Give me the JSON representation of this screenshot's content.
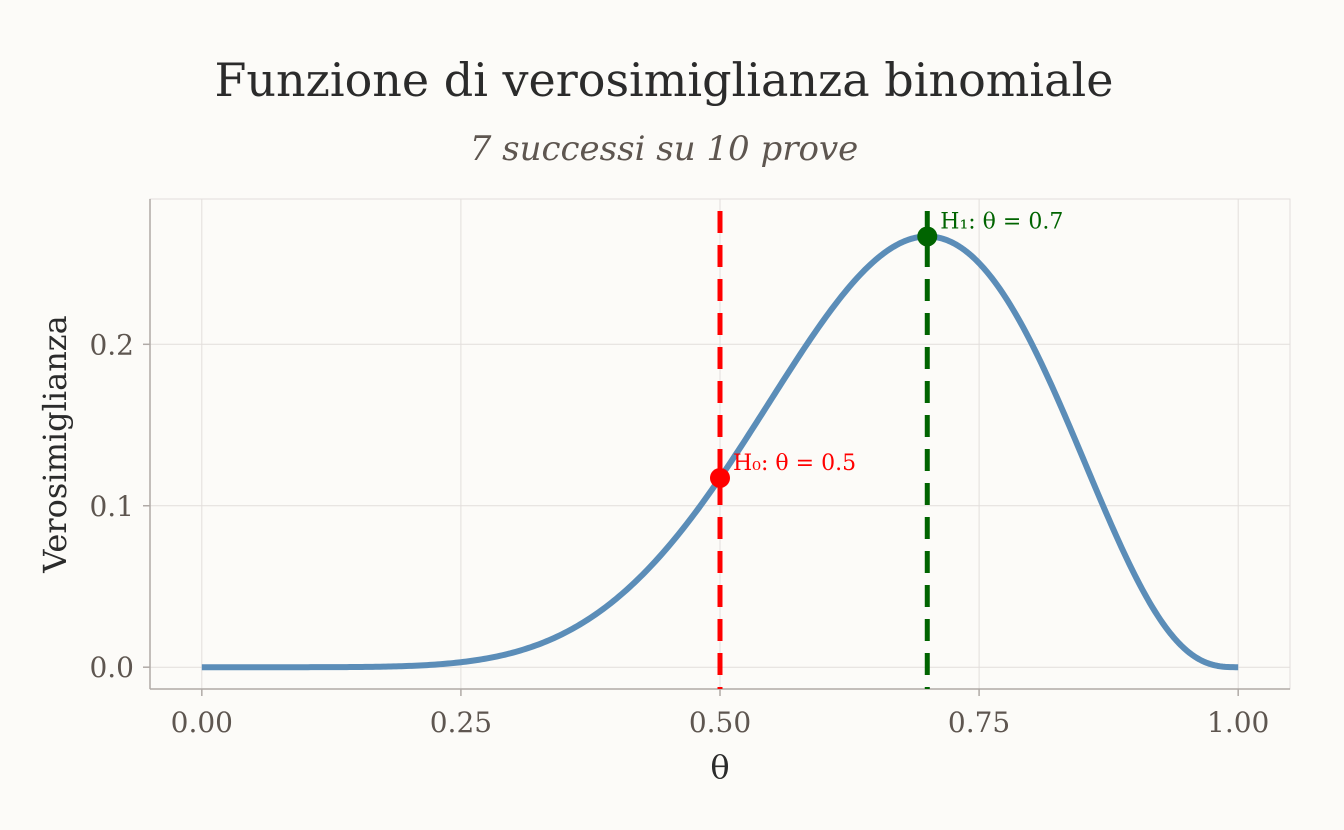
{
  "chart_data": {
    "type": "line",
    "title": "Funzione di verosimiglianza binomiale",
    "subtitle": "7 successi su 10 prove",
    "xlabel": "θ",
    "ylabel": "Verosimiglianza",
    "xlim": [
      -0.05,
      1.05
    ],
    "ylim": [
      -0.0135,
      0.29
    ],
    "x_ticks": [
      0,
      0.25,
      0.5,
      0.75,
      1.0
    ],
    "x_tick_labels": [
      "0.00",
      "0.25",
      "0.50",
      "0.75",
      "1.00"
    ],
    "y_ticks": [
      0,
      0.1,
      0.2
    ],
    "y_tick_labels": [
      "0.0",
      "0.1",
      "0.2"
    ],
    "grid": true,
    "series": [
      {
        "x": [
          0,
          0.05,
          0.1,
          0.15,
          0.2,
          0.25,
          0.3,
          0.35,
          0.4,
          0.45,
          0.5,
          0.55,
          0.6,
          0.65,
          0.7,
          0.75,
          0.8,
          0.85,
          0.9,
          0.95,
          1.0
        ],
        "values": [
          0,
          1e-07,
          8.7e-06,
          8.34e-05,
          0.000786,
          0.0031,
          0.009,
          0.0212,
          0.0425,
          0.0746,
          0.1172,
          0.1665,
          0.215,
          0.2522,
          0.2668,
          0.2503,
          0.2013,
          0.1298,
          0.0574,
          0.0105,
          0
        ],
        "color": "#5b8db8"
      }
    ],
    "reference_lines": [
      {
        "x": 0.5,
        "y": 0.1172,
        "label": "H₀: θ = 0.5",
        "color": "#ff0000"
      },
      {
        "x": 0.7,
        "y": 0.2668,
        "label": "H₁: θ = 0.7",
        "color": "#006400"
      }
    ]
  }
}
